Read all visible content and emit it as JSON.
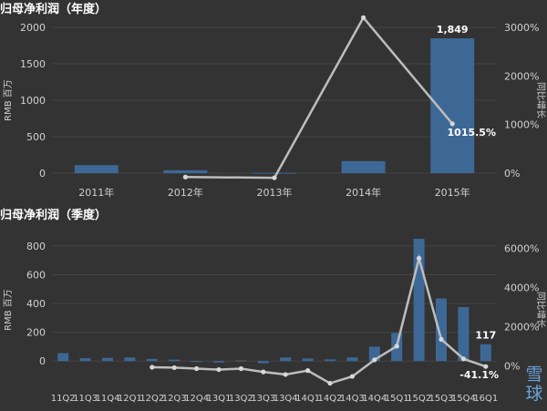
{
  "chart_data": [
    {
      "type": "bar+line",
      "title": "归母净利润（年度）",
      "ylabel": "RMB 百万",
      "y2label": "同比增长",
      "categories": [
        "2011年",
        "2012年",
        "2013年",
        "2014年",
        "2015年"
      ],
      "ylim": [
        0,
        2000
      ],
      "yticks": [
        "0",
        "500",
        "1000",
        "1500",
        "2000"
      ],
      "y2lim": [
        0,
        3000
      ],
      "y2ticks": [
        "0%",
        "1000%",
        "2000%",
        "3000%"
      ],
      "bar_values": [
        110,
        40,
        5,
        165,
        1849
      ],
      "line_values": [
        null,
        -80,
        -95,
        3200,
        1015.5
      ],
      "labels": {
        "last_bar": "1,849",
        "last_line": "1015.5%"
      },
      "bar_color": "#3d6896",
      "line_color": "#bdbdbd"
    },
    {
      "type": "bar+line",
      "title": "归母净利润（季度）",
      "ylabel": "RMB 百万",
      "y2label": "同比增长",
      "categories": [
        "11Q2",
        "11Q3",
        "11Q4",
        "12Q1",
        "12Q2",
        "12Q3",
        "12Q4",
        "13Q1",
        "13Q2",
        "13Q3",
        "13Q4",
        "14Q1",
        "14Q2",
        "14Q3",
        "14Q4",
        "15Q1",
        "15Q2",
        "15Q3",
        "15Q4",
        "16Q1"
      ],
      "ylim": [
        -100,
        850
      ],
      "yticks": [
        "0",
        "200",
        "400",
        "600",
        "800"
      ],
      "y2lim": [
        -500,
        6500
      ],
      "y2ticks": [
        "0%",
        "2000%",
        "4000%",
        "6000%"
      ],
      "bar_values": [
        55,
        20,
        22,
        25,
        15,
        10,
        -5,
        -10,
        5,
        -15,
        25,
        18,
        12,
        25,
        100,
        195,
        850,
        435,
        375,
        117
      ],
      "line_values": [
        null,
        null,
        null,
        null,
        -80,
        -100,
        -150,
        -200,
        -150,
        -320,
        -450,
        -250,
        -900,
        -550,
        300,
        1000,
        5500,
        1350,
        350,
        -41.1
      ],
      "labels": {
        "last_bar": "117",
        "last_line": "-41.1%"
      },
      "bar_color": "#3d6896",
      "line_color": "#bdbdbd"
    }
  ],
  "watermark": "雪球"
}
